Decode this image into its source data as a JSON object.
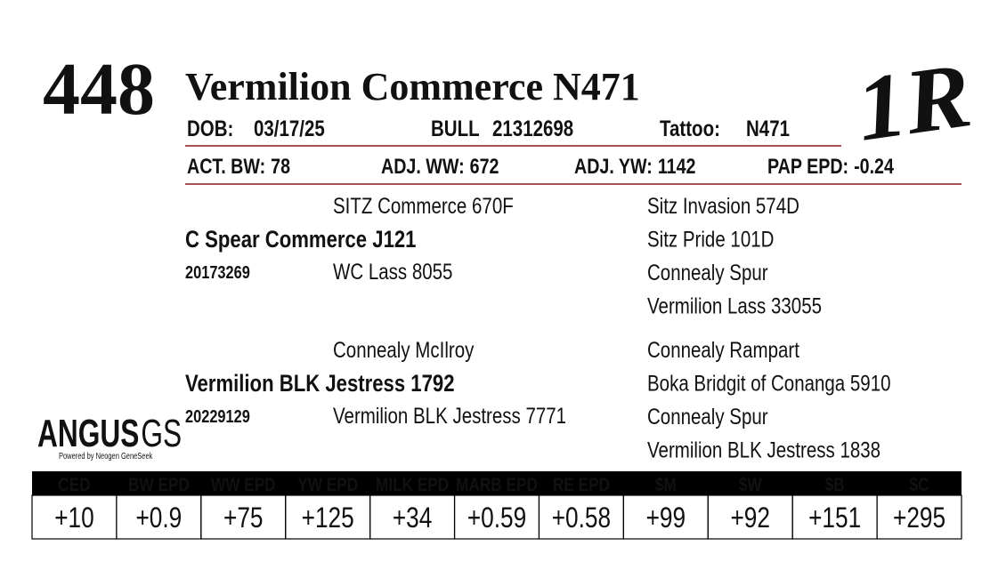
{
  "lot": "448",
  "name": "Vermilion Commerce N471",
  "info": [
    {
      "label": "DOB:",
      "value": "03/17/25"
    },
    {
      "label": "BULL",
      "value": "21312698"
    },
    {
      "label": "Tattoo:",
      "value": "N471"
    }
  ],
  "stats": [
    {
      "label": "ACT. BW:",
      "value": "78"
    },
    {
      "label": "ADJ. WW:",
      "value": "672"
    },
    {
      "label": "ADJ. YW:",
      "value": "1142"
    },
    {
      "label": "PAP EPD:",
      "value": "-0.24"
    }
  ],
  "pedigree": {
    "sire": {
      "name": "C Spear Commerce J121",
      "reg": "20173269",
      "sire": "SITZ Commerce 670F",
      "dam": "WC Lass 8055",
      "grandparents": [
        "Sitz Invasion 574D",
        "Sitz Pride 101D",
        "Connealy Spur",
        "Vermilion Lass 33055"
      ]
    },
    "dam": {
      "name": "Vermilion BLK Jestress 1792",
      "reg": "20229129",
      "sire": "Connealy McIlroy",
      "dam": "Vermilion BLK Jestress 7771",
      "grandparents": [
        "Connealy Rampart",
        "Boka Bridgit of Conanga 5910",
        "Connealy Spur",
        "Vermilion BLK Jestress 1838"
      ]
    }
  },
  "brand": "1R",
  "logo": {
    "word": "ANGUS",
    "suffix": "GS",
    "tagline": "Powered by Neogen GeneSeek"
  },
  "epd_table": {
    "headers": [
      "CED",
      "BW EPD",
      "WW EPD",
      "YW EPD",
      "MILK EPD",
      "MARB EPD",
      "RE EPD",
      "$M",
      "$W",
      "$B",
      "$C"
    ],
    "values": [
      "+10",
      "+0.9",
      "+75",
      "+125",
      "+34",
      "+0.59",
      "+0.58",
      "+99",
      "+92",
      "+151",
      "+295"
    ]
  }
}
